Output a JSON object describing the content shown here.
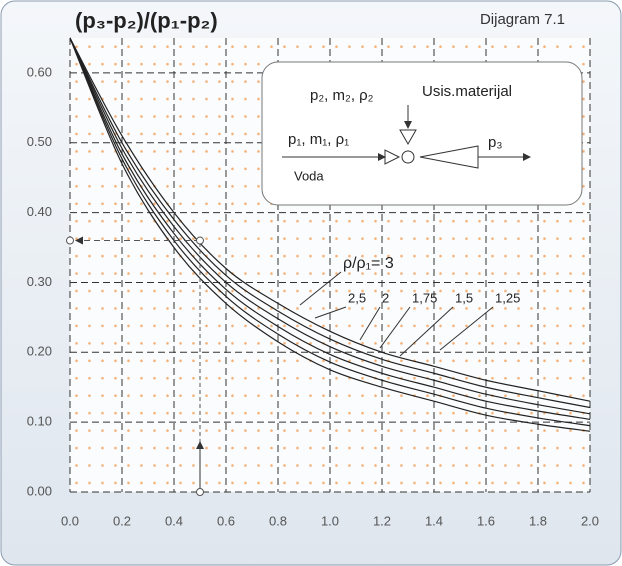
{
  "chart_data": {
    "type": "line",
    "title": "(p₃-p₂)/(p₁-p₂)",
    "subtitle": "Dijagram 7.1",
    "x": [
      0,
      0.2,
      0.4,
      0.6,
      0.8,
      1.0,
      1.2,
      1.4,
      1.6,
      1.8,
      2.0
    ],
    "series": [
      {
        "name": "ρ/ρ₁= 3",
        "color": "#222",
        "values": [
          0.65,
          0.51,
          0.4,
          0.32,
          0.27,
          0.23,
          0.2,
          0.18,
          0.16,
          0.145,
          0.13
        ]
      },
      {
        "name": "2,5",
        "color": "#222",
        "values": [
          0.65,
          0.5,
          0.39,
          0.31,
          0.259,
          0.219,
          0.19,
          0.17,
          0.15,
          0.135,
          0.121
        ]
      },
      {
        "name": "2",
        "color": "#222",
        "values": [
          0.65,
          0.492,
          0.38,
          0.3,
          0.248,
          0.208,
          0.18,
          0.16,
          0.14,
          0.125,
          0.112
        ]
      },
      {
        "name": "1,75",
        "color": "#222",
        "values": [
          0.65,
          0.484,
          0.37,
          0.29,
          0.237,
          0.197,
          0.17,
          0.15,
          0.13,
          0.116,
          0.104
        ]
      },
      {
        "name": "1,5",
        "color": "#222",
        "values": [
          0.65,
          0.477,
          0.36,
          0.28,
          0.226,
          0.186,
          0.16,
          0.14,
          0.12,
          0.106,
          0.095
        ]
      },
      {
        "name": "1,25",
        "color": "#222",
        "values": [
          0.65,
          0.47,
          0.35,
          0.27,
          0.215,
          0.175,
          0.15,
          0.13,
          0.11,
          0.097,
          0.087
        ]
      }
    ],
    "xlim": [
      0,
      2.0
    ],
    "ylim": [
      0,
      0.65
    ],
    "xticks": [
      {
        "value": 0,
        "label": "0.0"
      },
      0.2,
      0.4,
      0.6,
      0.8,
      {
        "value": 1,
        "label": "1.0"
      },
      1.2,
      1.4,
      1.6,
      1.8,
      {
        "value": 2,
        "label": "2.0"
      }
    ],
    "yticks": [
      {
        "value": 0,
        "label": "0.00"
      },
      {
        "value": 0.1,
        "label": "0.10"
      },
      {
        "value": 0.2,
        "label": "0.20"
      },
      {
        "value": 0.3,
        "label": "0.30"
      },
      {
        "value": 0.4,
        "label": "0.40"
      },
      {
        "value": 0.5,
        "label": "0.50"
      },
      {
        "value": 0.6,
        "label": "0.60"
      }
    ],
    "grid": true,
    "example_point": {
      "x": 0.5,
      "y": 0.36
    },
    "inset": {
      "suction": "p₂, m₂, ρ₂",
      "suction_label": "Usis.materijal",
      "inlet": "p₁, m₁, ρ₁",
      "inlet_label": "Voda",
      "outlet": "p₃"
    }
  }
}
